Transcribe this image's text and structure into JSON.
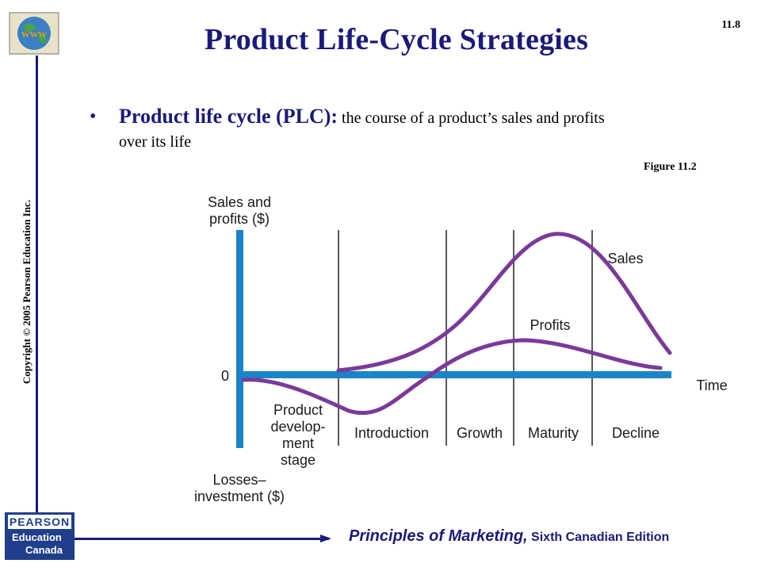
{
  "slide": {
    "title": "Product Life-Cycle Strategies",
    "number": "11.8",
    "bullet_term": "Product life cycle (PLC):",
    "bullet_text": " the course of a product’s sales and profits over its life",
    "figure_ref": "Figure 11.2",
    "copyright": "Copyright © 2005 Pearson Education Inc.",
    "footer_italic": "Principles of Marketing,",
    "footer_edition": " Sixth Canadian Edition"
  },
  "logos": {
    "www": "www",
    "pearson_line1": "PEARSON",
    "pearson_line2": "Education",
    "pearson_line3": "Canada"
  },
  "diagram": {
    "y_top_label": [
      "Sales and",
      "profits ($)"
    ],
    "y_bottom_label": [
      "Losses–",
      "investment ($)"
    ],
    "zero_label": "0",
    "x_axis_label": "Time",
    "stage0": [
      "Product",
      "develop-",
      "ment",
      "stage"
    ],
    "stages": [
      "Introduction",
      "Growth",
      "Maturity",
      "Decline"
    ],
    "series": [
      "Sales",
      "Profits"
    ],
    "colors": {
      "axis": "#1b84c6",
      "curve": "#7a3a9a",
      "divider": "#222222",
      "title": "#1a1a7a"
    }
  }
}
